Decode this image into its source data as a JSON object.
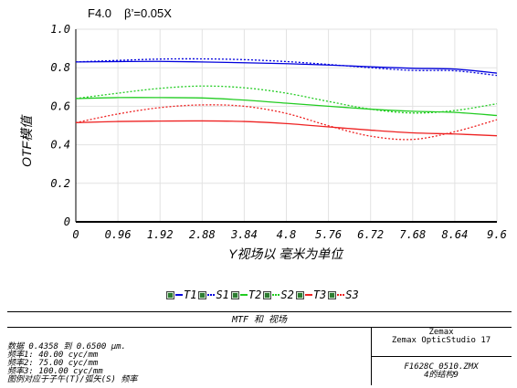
{
  "header": {
    "fnum": "F4.0",
    "beta": "β’=0.05X"
  },
  "chart_data": {
    "type": "line",
    "xlabel": "Y视场以 毫米为单位",
    "ylabel": "OTF模值",
    "xlim": [
      0,
      9.6
    ],
    "ylim": [
      0,
      1.0
    ],
    "x_ticks": [
      "0",
      "0.96",
      "1.92",
      "2.88",
      "3.84",
      "4.8",
      "5.76",
      "6.72",
      "7.68",
      "8.64",
      "9.6"
    ],
    "y_ticks": [
      "0",
      "0.2",
      "0.4",
      "0.6",
      "0.8",
      "1.0"
    ],
    "grid": true,
    "x": [
      0,
      0.96,
      1.92,
      2.88,
      3.84,
      4.8,
      5.76,
      6.72,
      7.68,
      8.64,
      9.6
    ],
    "series": [
      {
        "name": "T1",
        "color": "#0000dd",
        "style": "solid",
        "values": [
          0.83,
          0.832,
          0.833,
          0.83,
          0.826,
          0.821,
          0.814,
          0.805,
          0.797,
          0.793,
          0.772
        ]
      },
      {
        "name": "S1",
        "color": "#0000dd",
        "style": "dotted",
        "values": [
          0.83,
          0.838,
          0.845,
          0.846,
          0.842,
          0.832,
          0.817,
          0.8,
          0.786,
          0.784,
          0.76
        ]
      },
      {
        "name": "T2",
        "color": "#22cc22",
        "style": "solid",
        "values": [
          0.64,
          0.645,
          0.645,
          0.643,
          0.632,
          0.616,
          0.6,
          0.585,
          0.574,
          0.568,
          0.552
        ]
      },
      {
        "name": "S2",
        "color": "#22cc22",
        "style": "dotted",
        "values": [
          0.64,
          0.668,
          0.693,
          0.705,
          0.696,
          0.668,
          0.625,
          0.585,
          0.565,
          0.578,
          0.613
        ]
      },
      {
        "name": "T3",
        "color": "#ee2222",
        "style": "solid",
        "values": [
          0.515,
          0.521,
          0.523,
          0.524,
          0.521,
          0.51,
          0.493,
          0.476,
          0.462,
          0.456,
          0.447
        ]
      },
      {
        "name": "S3",
        "color": "#ee2222",
        "style": "dotted",
        "values": [
          0.515,
          0.56,
          0.593,
          0.607,
          0.6,
          0.563,
          0.499,
          0.445,
          0.428,
          0.468,
          0.53
        ]
      }
    ]
  },
  "legend_items": [
    {
      "label": "T1",
      "color": "#0000dd",
      "style": "solid"
    },
    {
      "label": "S1",
      "color": "#0000dd",
      "style": "dotted"
    },
    {
      "label": "T2",
      "color": "#22cc22",
      "style": "solid"
    },
    {
      "label": "S2",
      "color": "#22cc22",
      "style": "dotted"
    },
    {
      "label": "T3",
      "color": "#ee2222",
      "style": "solid"
    },
    {
      "label": "S3",
      "color": "#ee2222",
      "style": "dotted"
    }
  ],
  "info": {
    "title": "MTF 和 视场",
    "lines": [
      "数据 0.4358 到 0.6500 μm.",
      "频率1:   40.00 cyc/mm",
      "频率2:   75.00 cyc/mm",
      "频率3:  100.00 cyc/mm",
      "图例对应于子午(T)/弧矢(S) 频率"
    ],
    "software1": "Zemax",
    "software2": "Zemax OpticStudio 17",
    "file": "F1628C_0510.ZMX",
    "config": "4的结构9"
  }
}
